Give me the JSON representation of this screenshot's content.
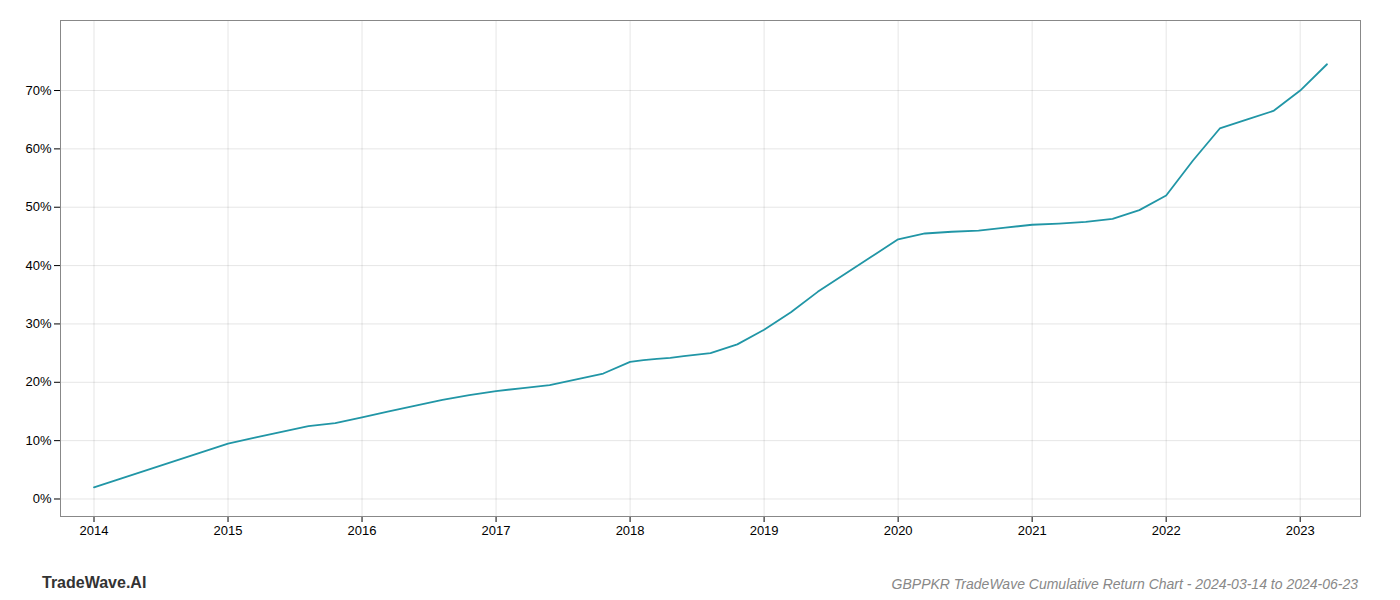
{
  "chart_data": {
    "type": "line",
    "title": "GBPPKR TradeWave Cumulative Return Chart - 2024-03-14 to 2024-06-23",
    "annotations": [
      "TradeWave.AI"
    ],
    "x": [
      2014.0,
      2014.2,
      2014.4,
      2014.6,
      2014.8,
      2015.0,
      2015.2,
      2015.4,
      2015.6,
      2015.8,
      2016.0,
      2016.2,
      2016.4,
      2016.6,
      2016.8,
      2017.0,
      2017.2,
      2017.4,
      2017.6,
      2017.8,
      2018.0,
      2018.1,
      2018.2,
      2018.3,
      2018.4,
      2018.6,
      2018.8,
      2019.0,
      2019.2,
      2019.4,
      2019.6,
      2019.8,
      2020.0,
      2020.1,
      2020.2,
      2020.4,
      2020.6,
      2020.8,
      2021.0,
      2021.2,
      2021.4,
      2021.6,
      2021.8,
      2022.0,
      2022.2,
      2022.4,
      2022.6,
      2022.8,
      2023.0,
      2023.2
    ],
    "values": [
      2.0,
      3.5,
      5.0,
      6.5,
      8.0,
      9.5,
      10.5,
      11.5,
      12.5,
      13.0,
      14.0,
      15.0,
      16.0,
      17.0,
      17.8,
      18.5,
      19.0,
      19.5,
      20.5,
      21.5,
      23.5,
      23.8,
      24.0,
      24.2,
      24.5,
      25.0,
      26.5,
      29.0,
      32.0,
      35.5,
      38.5,
      41.5,
      44.5,
      45.0,
      45.5,
      45.8,
      46.0,
      46.5,
      47.0,
      47.2,
      47.5,
      48.0,
      49.5,
      52.0,
      58.0,
      63.5,
      65.0,
      66.5,
      70.0,
      74.5
    ],
    "color": "#2196a6",
    "xlim": [
      2013.75,
      2023.45
    ],
    "ylim": [
      -3,
      82
    ],
    "xticks": [
      2014,
      2015,
      2016,
      2017,
      2018,
      2019,
      2020,
      2021,
      2022,
      2023
    ],
    "yticks": [
      {
        "value": 0,
        "label": "0%"
      },
      {
        "value": 10,
        "label": "10%"
      },
      {
        "value": 20,
        "label": "20%"
      },
      {
        "value": 30,
        "label": "30%"
      },
      {
        "value": 40,
        "label": "40%"
      },
      {
        "value": 50,
        "label": "50%"
      },
      {
        "value": 60,
        "label": "60%"
      },
      {
        "value": 70,
        "label": "70%"
      }
    ],
    "grid": true
  }
}
